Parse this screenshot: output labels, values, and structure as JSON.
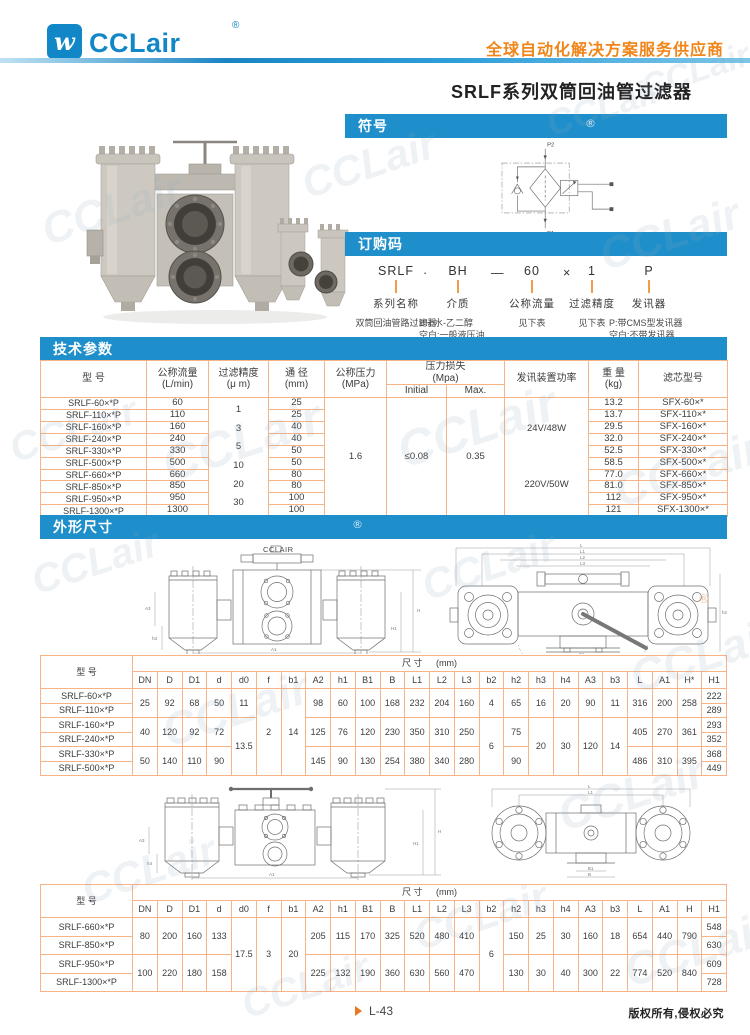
{
  "colors": {
    "brand_blue": "#1287c8",
    "bar_blue": "#1e8fca",
    "slogan_orange": "#f08519",
    "table_border": "#f5b387",
    "tick_orange": "#f29b4d",
    "watermark": "#93aabf"
  },
  "header": {
    "logo_glyph": "w",
    "logo_text": "CCLair",
    "reg": "®",
    "slogan": "全球自动化解决方案服务供应商"
  },
  "title": "SRLF系列双筒回油管过滤器",
  "symbol": {
    "bar": "符号",
    "p2": "P2",
    "p1": "P1"
  },
  "ordering": {
    "bar": "订购码",
    "separators": [
      "·",
      "—",
      "×"
    ],
    "columns": [
      {
        "code": "SRLF",
        "label": "系列名称",
        "desc": "双筒回油管路过滤器"
      },
      {
        "code": "BH",
        "label": "介质",
        "desc": "BH:水-乙二醇\n空白:一般液压油"
      },
      {
        "code": "60",
        "label": "公称流量",
        "desc": "见下表"
      },
      {
        "code": "1",
        "label": "过滤精度",
        "desc": "见下表"
      },
      {
        "code": "P",
        "label": "发讯器",
        "desc": "P:带CMS型发讯器\n空白:不带发讯器"
      }
    ]
  },
  "tech": {
    "bar": "技术参数",
    "head": {
      "model": "型 号",
      "flow": "公称流量\n(L/min)",
      "precision": "过滤精度\n(μ m)",
      "dia": "通 径\n(mm)",
      "pressure": "公称压力\n(MPa)",
      "loss": "压力损失\n(Mpa)",
      "initial": "Initial",
      "max": "Max.",
      "power": "发讯装置功率",
      "weight": "重 量\n(kg)",
      "element": "滤芯型号"
    },
    "precision_values": [
      "1",
      "3",
      "5",
      "10",
      "20",
      "30"
    ],
    "pressure": "1.6",
    "loss_initial": "≤0.08",
    "loss_max": "0.35",
    "power_values": [
      "24V/48W",
      "220V/50W"
    ],
    "rows": [
      [
        "SRLF-60×*P",
        "60",
        "25",
        "13.2",
        "SFX-60×*"
      ],
      [
        "SRLF-110×*P",
        "110",
        "25",
        "13.7",
        "SFX-110×*"
      ],
      [
        "SRLF-160×*P",
        "160",
        "40",
        "29.5",
        "SFX-160×*"
      ],
      [
        "SRLF-240×*P",
        "240",
        "40",
        "32.0",
        "SFX-240×*"
      ],
      [
        "SRLF-330×*P",
        "330",
        "50",
        "52.5",
        "SFX-330×*"
      ],
      [
        "SRLF-500×*P",
        "500",
        "50",
        "58.5",
        "SFX-500×*"
      ],
      [
        "SRLF-660×*P",
        "660",
        "80",
        "77.0",
        "SFX-660×*"
      ],
      [
        "SRLF-850×*P",
        "850",
        "80",
        "81.0",
        "SFX-850×*"
      ],
      [
        "SRLF-950×*P",
        "950",
        "100",
        "112",
        "SFX-950×*"
      ],
      [
        "SRLF-1300×*P",
        "1300",
        "100",
        "121",
        "SFX-1300×*"
      ]
    ]
  },
  "dims": {
    "bar": "外形尺寸",
    "model_header": "型 号",
    "size_header": "尺 寸",
    "size_unit": "(mm)",
    "table1": {
      "columns": [
        "DN",
        "D",
        "D1",
        "d",
        "d0",
        "f",
        "b1",
        "A2",
        "h1",
        "B1",
        "B",
        "L1",
        "L2",
        "L3",
        "b2",
        "h2",
        "h3",
        "h4",
        "A3",
        "b3",
        "L",
        "A1",
        "H*",
        "H1"
      ],
      "rows": [
        [
          "SRLF-60×*P",
          {
            "t": "25",
            "rs": 2
          },
          {
            "t": "92",
            "rs": 2
          },
          {
            "t": "68",
            "rs": 2
          },
          {
            "t": "50",
            "rs": 2
          },
          {
            "t": "11",
            "rs": 2
          },
          {
            "t": "2",
            "rs": 6
          },
          {
            "t": "14",
            "rs": 6
          },
          {
            "t": "98",
            "rs": 2
          },
          {
            "t": "60",
            "rs": 2
          },
          {
            "t": "100",
            "rs": 2
          },
          {
            "t": "168",
            "rs": 2
          },
          {
            "t": "232",
            "rs": 2
          },
          {
            "t": "204",
            "rs": 2
          },
          {
            "t": "160",
            "rs": 2
          },
          {
            "t": "4",
            "rs": 2
          },
          {
            "t": "65",
            "rs": 2
          },
          {
            "t": "16",
            "rs": 2
          },
          {
            "t": "20",
            "rs": 2
          },
          {
            "t": "90",
            "rs": 2
          },
          {
            "t": "11",
            "rs": 2
          },
          {
            "t": "316",
            "rs": 2
          },
          {
            "t": "200",
            "rs": 2
          },
          {
            "t": "258",
            "rs": 2
          },
          "222"
        ],
        [
          "SRLF-110×*P",
          "289"
        ],
        [
          "SRLF-160×*P",
          {
            "t": "40",
            "rs": 2
          },
          {
            "t": "120",
            "rs": 2
          },
          {
            "t": "92",
            "rs": 2
          },
          {
            "t": "72",
            "rs": 2
          },
          {
            "t": "13.5",
            "rs": 4
          },
          {
            "t": "125",
            "rs": 2
          },
          {
            "t": "76",
            "rs": 2
          },
          {
            "t": "120",
            "rs": 2
          },
          {
            "t": "230",
            "rs": 2
          },
          {
            "t": "350",
            "rs": 2
          },
          {
            "t": "310",
            "rs": 2
          },
          {
            "t": "250",
            "rs": 2
          },
          {
            "t": "6",
            "rs": 4
          },
          {
            "t": "75",
            "rs": 2
          },
          {
            "t": "20",
            "rs": 4
          },
          {
            "t": "30",
            "rs": 4
          },
          {
            "t": "120",
            "rs": 4
          },
          {
            "t": "14",
            "rs": 4
          },
          {
            "t": "405",
            "rs": 2
          },
          {
            "t": "270",
            "rs": 2
          },
          {
            "t": "361",
            "rs": 2
          },
          "293"
        ],
        [
          "SRLF-240×*P",
          "352"
        ],
        [
          "SRLF-330×*P",
          {
            "t": "50",
            "rs": 2
          },
          {
            "t": "140",
            "rs": 2
          },
          {
            "t": "110",
            "rs": 2
          },
          {
            "t": "90",
            "rs": 2
          },
          {
            "t": "145",
            "rs": 2
          },
          {
            "t": "90",
            "rs": 2
          },
          {
            "t": "130",
            "rs": 2
          },
          {
            "t": "254",
            "rs": 2
          },
          {
            "t": "380",
            "rs": 2
          },
          {
            "t": "340",
            "rs": 2
          },
          {
            "t": "280",
            "rs": 2
          },
          {
            "t": "90",
            "rs": 2
          },
          {
            "t": "486",
            "rs": 2
          },
          {
            "t": "310",
            "rs": 2
          },
          {
            "t": "395",
            "rs": 2
          },
          "368"
        ],
        [
          "SRLF-500×*P",
          "449"
        ]
      ]
    },
    "table2": {
      "columns": [
        "DN",
        "D",
        "D1",
        "d",
        "d0",
        "f",
        "b1",
        "A2",
        "h1",
        "B1",
        "B",
        "L1",
        "L2",
        "L3",
        "b2",
        "h2",
        "h3",
        "h4",
        "A3",
        "b3",
        "L",
        "A1",
        "H",
        "H1"
      ],
      "rows": [
        [
          "SRLF-660×*P",
          {
            "t": "80",
            "rs": 2
          },
          {
            "t": "200",
            "rs": 2
          },
          {
            "t": "160",
            "rs": 2
          },
          {
            "t": "133",
            "rs": 2
          },
          {
            "t": "17.5",
            "rs": 4
          },
          {
            "t": "3",
            "rs": 4
          },
          {
            "t": "20",
            "rs": 4
          },
          {
            "t": "205",
            "rs": 2
          },
          {
            "t": "115",
            "rs": 2
          },
          {
            "t": "170",
            "rs": 2
          },
          {
            "t": "325",
            "rs": 2
          },
          {
            "t": "520",
            "rs": 2
          },
          {
            "t": "480",
            "rs": 2
          },
          {
            "t": "410",
            "rs": 2
          },
          {
            "t": "6",
            "rs": 4
          },
          {
            "t": "150",
            "rs": 2
          },
          {
            "t": "25",
            "rs": 2
          },
          {
            "t": "30",
            "rs": 2
          },
          {
            "t": "160",
            "rs": 2
          },
          {
            "t": "18",
            "rs": 2
          },
          {
            "t": "654",
            "rs": 2
          },
          {
            "t": "440",
            "rs": 2
          },
          {
            "t": "790",
            "rs": 2
          },
          "548"
        ],
        [
          "SRLF-850×*P",
          "630"
        ],
        [
          "SRLF-950×*P",
          {
            "t": "100",
            "rs": 2
          },
          {
            "t": "220",
            "rs": 2
          },
          {
            "t": "180",
            "rs": 2
          },
          {
            "t": "158",
            "rs": 2
          },
          {
            "t": "225",
            "rs": 2
          },
          {
            "t": "132",
            "rs": 2
          },
          {
            "t": "190",
            "rs": 2
          },
          {
            "t": "360",
            "rs": 2
          },
          {
            "t": "630",
            "rs": 2
          },
          {
            "t": "560",
            "rs": 2
          },
          {
            "t": "470",
            "rs": 2
          },
          {
            "t": "130",
            "rs": 2
          },
          {
            "t": "30",
            "rs": 2
          },
          {
            "t": "40",
            "rs": 2
          },
          {
            "t": "300",
            "rs": 2
          },
          {
            "t": "22",
            "rs": 2
          },
          {
            "t": "774",
            "rs": 2
          },
          {
            "t": "520",
            "rs": 2
          },
          {
            "t": "840",
            "rs": 2
          },
          "609"
        ],
        [
          "SRLF-1300×*P",
          "728"
        ]
      ]
    }
  },
  "drawings": {
    "d1": {
      "brand": "CCLAIR",
      "labels": [
        "H",
        "H1",
        "A3",
        "h3",
        "A1"
      ]
    },
    "d2": {
      "labels": [
        "L",
        "L1",
        "L2",
        "L3",
        "B1",
        "h2"
      ]
    },
    "d3": {
      "labels": [
        "H",
        "H1",
        "A3",
        "h4",
        "A1"
      ]
    },
    "d4": {
      "labels": [
        "L",
        "L1",
        "B1",
        "B"
      ]
    }
  },
  "footer": {
    "page": "L-43",
    "copyright": "版权所有,侵权必究"
  },
  "watermark_text": "CCLair",
  "reg": "®"
}
